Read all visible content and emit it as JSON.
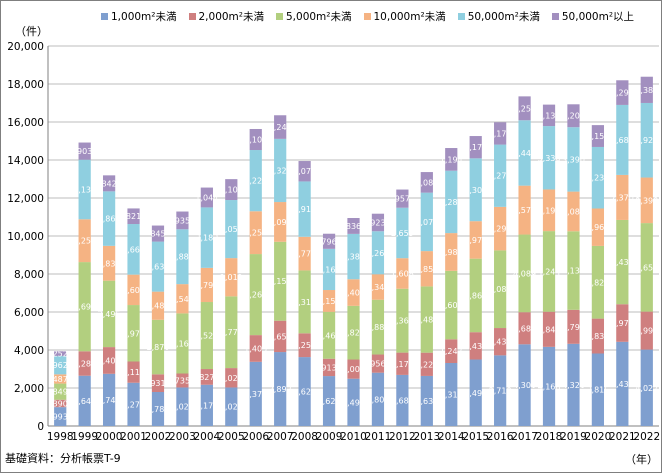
{
  "chart_data": {
    "type": "bar",
    "stacked": true,
    "unit_label": "（件）",
    "x_unit_label": "（年）",
    "source": "基礎資料：分析帳票T-9",
    "ylim": [
      0,
      20000
    ],
    "yticks": [
      "0",
      "2,000",
      "4,000",
      "6,000",
      "8,000",
      "10,000",
      "12,000",
      "14,000",
      "16,000",
      "18,000",
      "20,000"
    ],
    "ytick_values": [
      0,
      2000,
      4000,
      6000,
      8000,
      10000,
      12000,
      14000,
      16000,
      18000,
      20000
    ],
    "grid": true,
    "legend_position": "top",
    "categories": [
      "1998",
      "1999",
      "2000",
      "2001",
      "2002",
      "2003",
      "2004",
      "2005",
      "2006",
      "2007",
      "2008",
      "2009",
      "2010",
      "2011",
      "2012",
      "2013",
      "2014",
      "2015",
      "2016",
      "2017",
      "2018",
      "2019",
      "2020",
      "2021",
      "2022"
    ],
    "series": [
      {
        "name": "1,000m²未満",
        "color": "#7f9fcf",
        "values": [
          993,
          2646,
          2747,
          2277,
          1789,
          2028,
          2171,
          2028,
          3378,
          3892,
          3627,
          2628,
          2490,
          2806,
          2689,
          2635,
          3316,
          3499,
          3718,
          4300,
          4166,
          4326,
          3816,
          4431,
          4022
        ],
        "labels": [
          "993",
          "2,646",
          "2,747",
          "2,277",
          "1,789",
          "2,028",
          "2,171",
          "2,028",
          "3,378",
          "3,892",
          "3,627",
          "2,628",
          "2,490",
          "2,806",
          "2,689",
          "2,635",
          "3,316",
          "3,499",
          "3,718",
          "4,300",
          "4,166",
          "4,326",
          "3,816",
          "4,431",
          "4,022"
        ]
      },
      {
        "name": "2,000m²未満",
        "color": "#cf7f7f",
        "values": [
          390,
          1287,
          1406,
          1118,
          931,
          735,
          827,
          1020,
          1405,
          1650,
          1251,
          913,
          1009,
          956,
          1174,
          1225,
          1247,
          1439,
          1438,
          1688,
          1847,
          1790,
          1836,
          1978,
          1998
        ],
        "labels": [
          "390",
          "1,287",
          "1,406",
          "1,118",
          "931",
          "735",
          "827",
          "1,020",
          "1,405",
          "1,650",
          "1,251",
          "913",
          "1,009",
          "956",
          "1,174",
          "1,225",
          "1,247",
          "1,439",
          "1,438",
          "1,688",
          "1,847",
          "1,790",
          "1,836",
          "1,978",
          "1,998"
        ]
      },
      {
        "name": "5,000m²未満",
        "color": "#b2cf7f",
        "values": [
          849,
          4694,
          3495,
          2971,
          2870,
          3163,
          3527,
          3776,
          4266,
          4154,
          3310,
          2466,
          2824,
          2884,
          3362,
          3487,
          3603,
          3869,
          4087,
          4089,
          4244,
          4133,
          3826,
          4436,
          4659
        ],
        "labels": [
          "849",
          "4,694",
          "3,495",
          "2,971",
          "2,870",
          "3,163",
          "3,527",
          "3,776",
          "4,266",
          "4,154",
          "3,310",
          "2,466",
          "2,824",
          "2,884",
          "3,362",
          "3,487",
          "3,603",
          "3,869",
          "4,087",
          "4,089",
          "4,244",
          "4,133",
          "3,826",
          "4,436",
          "4,659"
        ]
      },
      {
        "name": "10,000m²未満",
        "color": "#f5b383",
        "values": [
          487,
          2253,
          1834,
          1601,
          1482,
          1541,
          1798,
          2012,
          2253,
          2091,
          1771,
          1150,
          1401,
          1340,
          1608,
          1858,
          1987,
          1973,
          2291,
          2573,
          2192,
          2088,
          1969,
          2370,
          2398
        ],
        "labels": [
          "487",
          "2,253",
          "1,834",
          "1,601",
          "1,482",
          "1,541",
          "1,798",
          "2,012",
          "2,253",
          "2,091",
          "1,771",
          "1,150",
          "1,401",
          "1,340",
          "1,608",
          "1,858",
          "1,987",
          "1,973",
          "2,291",
          "2,573",
          "2,192",
          "2,088",
          "1,969",
          "2,370",
          "2,398"
        ]
      },
      {
        "name": "50,000m²未満",
        "color": "#8fcfe0",
        "values": [
          962,
          3136,
          2868,
          2663,
          2633,
          2886,
          3182,
          3057,
          3223,
          3325,
          2913,
          2167,
          2387,
          2264,
          2655,
          3077,
          3283,
          3308,
          3277,
          3441,
          3336,
          3390,
          3239,
          3683,
          3925
        ],
        "labels": [
          "962",
          "3,136",
          "2,868",
          "2,663",
          "2,633",
          "2,886",
          "3,182",
          "3,057",
          "3,223",
          "3,325",
          "2,913",
          "2,167",
          "2,387",
          "2,264",
          "2,655",
          "3,077",
          "3,283",
          "3,308",
          "3,277",
          "3,441",
          "3,336",
          "3,390",
          "3,239",
          "3,683",
          "3,925"
        ]
      },
      {
        "name": "50,000m²以上",
        "color": "#a28fbf",
        "values": [
          252,
          903,
          842,
          821,
          845,
          935,
          1044,
          1100,
          1107,
          1243,
          1074,
          796,
          836,
          923,
          957,
          1083,
          1194,
          1173,
          1173,
          1258,
          1130,
          1205,
          1150,
          1298,
          1381
        ],
        "labels": [
          "252",
          "903",
          "842",
          "821",
          "845",
          "935",
          "1,044",
          "1,100",
          "1,107",
          "1,243",
          "1,074",
          "796",
          "836",
          "923",
          "957",
          "1,083",
          "1,194",
          "1,173",
          "1,173",
          "1,258",
          "1,130",
          "1,205",
          "1,150",
          "1,298",
          "1,381"
        ]
      }
    ]
  }
}
